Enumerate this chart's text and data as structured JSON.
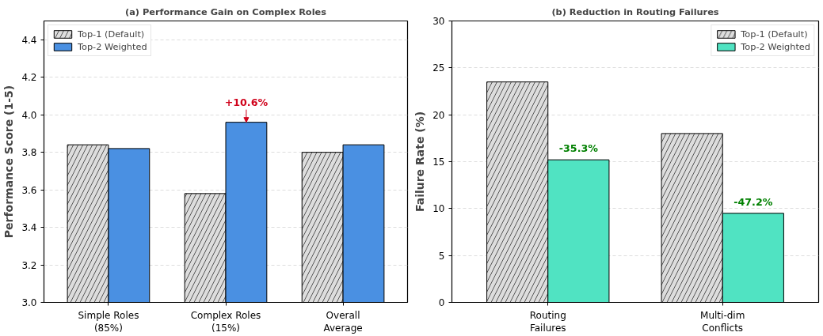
{
  "chart_data": [
    {
      "type": "bar",
      "title": "(a) Performance Gain on Complex Roles",
      "ylabel": "Performance Score (1-5)",
      "categories": [
        "Simple Roles\n(85%)",
        "Complex Roles\n(15%)",
        "Overall\nAverage"
      ],
      "series": [
        {
          "name": "Top-1 (Default)",
          "color": "#dddddd",
          "values": [
            3.84,
            3.58,
            3.8
          ]
        },
        {
          "name": "Top-2 Weighted",
          "color": "#4a90e2",
          "values": [
            3.82,
            3.96,
            3.84
          ]
        }
      ],
      "ylim": [
        3.0,
        4.5
      ],
      "yticks": [
        {
          "value": 3.0,
          "label": "3.0"
        },
        3.2,
        3.4,
        3.6,
        3.8,
        {
          "value": 4.0,
          "label": "4.0"
        },
        4.2,
        4.4
      ],
      "grid": "y",
      "legend": "top left",
      "annotations": [
        {
          "text": "+10.6%",
          "x": "Complex Roles\n(15%)",
          "y": 3.96
        }
      ]
    },
    {
      "type": "bar",
      "title": "(b) Reduction in Routing Failures",
      "ylabel": "Failure Rate (%)",
      "categories": [
        "Routing\nFailures",
        "Multi-dim\nConflicts"
      ],
      "series": [
        {
          "name": "Top-1 (Default)",
          "color": "#dddddd",
          "values": [
            23.5,
            18.0
          ]
        },
        {
          "name": "Top-2 Weighted",
          "color": "#50e3c2",
          "values": [
            15.2,
            9.5
          ]
        }
      ],
      "ylim": [
        0,
        30
      ],
      "yticks": [
        0,
        5,
        10,
        15,
        20,
        25,
        30
      ],
      "grid": "y",
      "legend": "top right",
      "annotations": [
        {
          "text": "-35.3%",
          "x": "Routing\nFailures",
          "y": 15.2
        },
        {
          "text": "-47.2%",
          "x": "Multi-dim\nConflicts",
          "y": 9.5
        }
      ]
    }
  ]
}
